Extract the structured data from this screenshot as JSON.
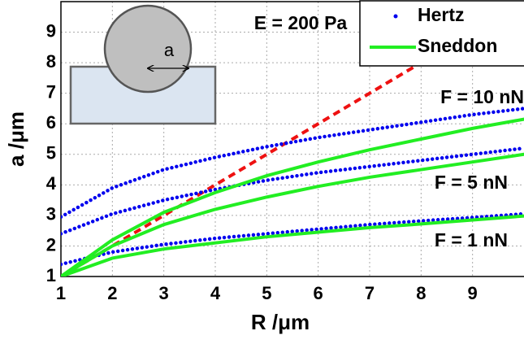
{
  "chart_data": {
    "type": "line",
    "xlabel": "R /μm",
    "ylabel": "a /μm",
    "x": [
      1,
      2,
      3,
      4,
      5,
      6,
      7,
      8,
      9,
      10
    ],
    "series": [
      {
        "name": "Hertz",
        "color": "#0000ee",
        "style": "dotted",
        "values": [
          2.95,
          3.9,
          4.5,
          4.9,
          5.25,
          5.55,
          5.8,
          6.05,
          6.3,
          6.5
        ]
      },
      {
        "name": "Hertz",
        "color": "#0000ee",
        "style": "dotted",
        "values": [
          2.4,
          3.05,
          3.5,
          3.85,
          4.15,
          4.4,
          4.6,
          4.8,
          5.0,
          5.2
        ]
      },
      {
        "name": "Hertz",
        "color": "#0000ee",
        "style": "dotted",
        "values": [
          1.4,
          1.8,
          2.05,
          2.25,
          2.4,
          2.55,
          2.7,
          2.82,
          2.93,
          3.05
        ]
      },
      {
        "name": "Sneddon",
        "color": "#22ee22",
        "style": "solid",
        "values": [
          1,
          2.2,
          3.1,
          3.75,
          4.3,
          4.75,
          5.15,
          5.5,
          5.85,
          6.15
        ]
      },
      {
        "name": "Sneddon",
        "color": "#22ee22",
        "style": "solid",
        "values": [
          1,
          2.0,
          2.7,
          3.2,
          3.6,
          3.95,
          4.25,
          4.5,
          4.75,
          5.0
        ]
      },
      {
        "name": "Sneddon",
        "color": "#22ee22",
        "style": "solid",
        "values": [
          1,
          1.6,
          1.9,
          2.1,
          2.3,
          2.45,
          2.6,
          2.72,
          2.85,
          2.98
        ]
      }
    ],
    "reference_line": {
      "color": "#ee1111",
      "values": [
        1,
        2,
        3,
        4,
        5,
        6,
        7,
        8,
        9,
        10
      ]
    },
    "xlim": [
      1,
      10
    ],
    "ylim": [
      1,
      10
    ],
    "xticks": [
      1,
      2,
      3,
      4,
      5,
      6,
      7,
      8,
      9
    ],
    "yticks": [
      1,
      2,
      3,
      4,
      5,
      6,
      7,
      8,
      9
    ],
    "grid": true,
    "annotations": [
      "E = 200 Pa",
      "F = 10 nN",
      "F = 5 nN",
      "F = 1 nN",
      "a"
    ]
  }
}
